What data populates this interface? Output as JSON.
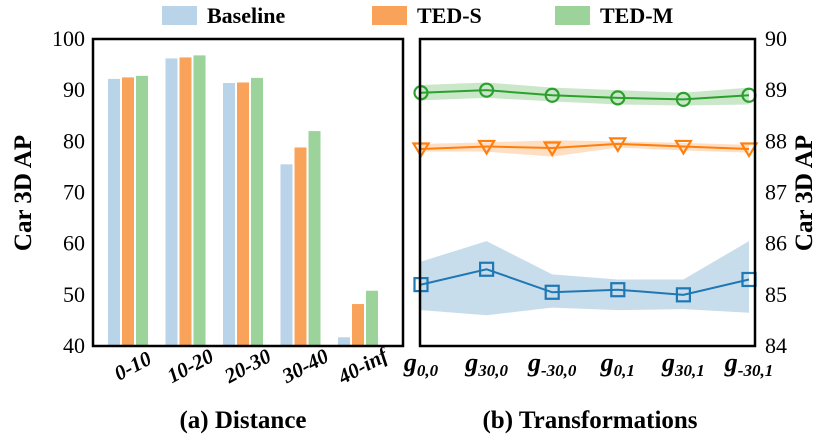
{
  "legend": [
    {
      "name": "Baseline",
      "color": "#b9d3e8"
    },
    {
      "name": "TED-S",
      "color": "#f9a35a"
    },
    {
      "name": "TED-M",
      "color": "#9bd39b"
    }
  ],
  "chart_data": [
    {
      "type": "bar",
      "subtitle": "(a) Distance",
      "ylabel": "Car 3D AP",
      "ylim": [
        40,
        100
      ],
      "yticks": [
        40,
        50,
        60,
        70,
        80,
        90,
        100
      ],
      "categories": [
        "0-10",
        "10-20",
        "20-30",
        "30-40",
        "40-inf"
      ],
      "series": [
        {
          "name": "Baseline",
          "color": "#b9d3e8",
          "values": [
            92.2,
            96.2,
            91.4,
            75.5,
            41.7
          ]
        },
        {
          "name": "TED-S",
          "color": "#f9a35a",
          "values": [
            92.5,
            96.4,
            91.5,
            78.8,
            48.2
          ]
        },
        {
          "name": "TED-M",
          "color": "#9bd39b",
          "values": [
            92.8,
            96.8,
            92.4,
            82.0,
            50.8
          ]
        }
      ]
    },
    {
      "type": "line",
      "subtitle": "(b) Transformations",
      "ylabel": "Car 3D AP",
      "ylim": [
        84,
        90
      ],
      "yticks": [
        84,
        85,
        86,
        87,
        88,
        89,
        90
      ],
      "categories": [
        {
          "base": "g",
          "sub": "0,0"
        },
        {
          "base": "g",
          "sub": "30,0"
        },
        {
          "base": "g",
          "sub": "-30,0"
        },
        {
          "base": "g",
          "sub": "0,1"
        },
        {
          "base": "g",
          "sub": "30,1"
        },
        {
          "base": "g",
          "sub": "-30,1"
        }
      ],
      "series": [
        {
          "name": "TED-M",
          "color": "#2ca02c",
          "marker": "circle",
          "values": [
            88.95,
            89.0,
            88.9,
            88.85,
            88.82,
            88.9
          ],
          "band_low": [
            88.8,
            88.85,
            88.78,
            88.72,
            88.7,
            88.72
          ],
          "band_high": [
            89.1,
            89.15,
            89.05,
            89.0,
            88.95,
            89.05
          ]
        },
        {
          "name": "TED-S",
          "color": "#ff7f0e",
          "marker": "triangle",
          "values": [
            87.85,
            87.9,
            87.87,
            87.95,
            87.9,
            87.85
          ],
          "band_low": [
            87.8,
            87.8,
            87.7,
            87.88,
            87.82,
            87.78
          ],
          "band_high": [
            87.95,
            87.98,
            88.02,
            88.0,
            87.97,
            87.93
          ]
        },
        {
          "name": "Baseline",
          "color": "#1f77b4",
          "marker": "square",
          "values": [
            85.2,
            85.5,
            85.05,
            85.1,
            85.0,
            85.3
          ],
          "band_low": [
            84.7,
            84.6,
            84.75,
            84.7,
            84.72,
            84.65
          ],
          "band_high": [
            85.65,
            86.05,
            85.4,
            85.3,
            85.3,
            86.05
          ]
        }
      ]
    }
  ]
}
